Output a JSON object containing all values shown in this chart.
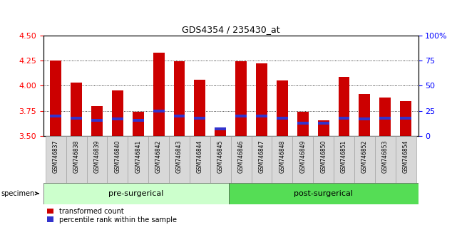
{
  "title": "GDS4354 / 235430_at",
  "samples": [
    "GSM746837",
    "GSM746838",
    "GSM746839",
    "GSM746840",
    "GSM746841",
    "GSM746842",
    "GSM746843",
    "GSM746844",
    "GSM746845",
    "GSM746846",
    "GSM746847",
    "GSM746848",
    "GSM746849",
    "GSM746850",
    "GSM746851",
    "GSM746852",
    "GSM746853",
    "GSM746854"
  ],
  "bar_heights": [
    4.25,
    4.03,
    3.8,
    3.95,
    3.74,
    4.33,
    4.24,
    4.06,
    3.58,
    4.24,
    4.22,
    4.05,
    3.74,
    3.66,
    4.09,
    3.92,
    3.88,
    3.85
  ],
  "blue_positions": [
    3.7,
    3.68,
    3.655,
    3.67,
    3.655,
    3.745,
    3.7,
    3.68,
    3.575,
    3.7,
    3.7,
    3.68,
    3.63,
    3.625,
    3.68,
    3.67,
    3.68,
    3.68
  ],
  "ymin": 3.5,
  "ymax": 4.5,
  "yticks": [
    3.5,
    3.75,
    4.0,
    4.25,
    4.5
  ],
  "bar_color": "#cc0000",
  "blue_color": "#3333cc",
  "background_color": "#ffffff",
  "pre_surgical_count": 9,
  "post_surgical_count": 9,
  "pre_label": "pre-surgerical",
  "post_label": "post-surgerical",
  "pre_color": "#ccffcc",
  "post_color": "#55dd55",
  "legend_red": "transformed count",
  "legend_blue": "percentile rank within the sample",
  "bar_width": 0.55,
  "right_yticks": [
    0,
    25,
    50,
    75,
    100
  ],
  "right_ylabels": [
    "0",
    "25",
    "50",
    "75",
    "100%"
  ]
}
